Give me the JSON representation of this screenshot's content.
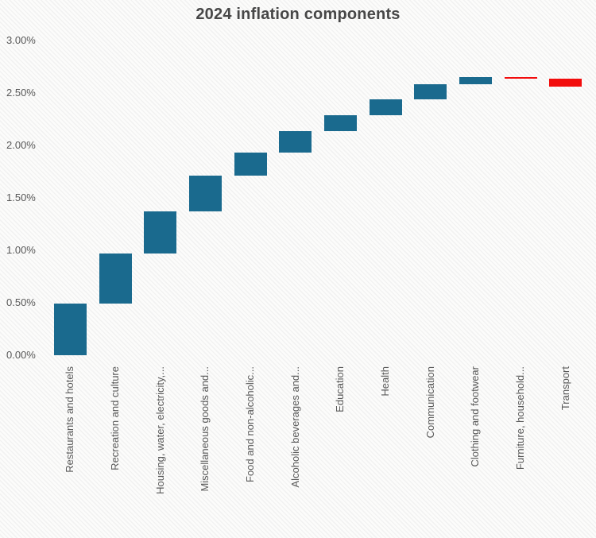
{
  "chart_data": {
    "type": "bar",
    "subtype": "waterfall",
    "title": "2024 inflation components",
    "xlabel": "",
    "ylabel": "",
    "unit": "%",
    "ylim": [
      0,
      3.0
    ],
    "grid": false,
    "legend": false,
    "categories": [
      "Restaurants and hotels",
      "Recreation and culture",
      "Housing, water, electricity,...",
      "Miscellaneous goods and...",
      "Food and non-alcoholic...",
      "Alcoholic beverages and...",
      "Education",
      "Health",
      "Communication",
      "Clothing and footwear",
      "Furniture, household...",
      "Transport"
    ],
    "values": [
      0.49,
      0.48,
      0.4,
      0.34,
      0.22,
      0.21,
      0.15,
      0.15,
      0.14,
      0.07,
      -0.01,
      -0.08
    ],
    "cumulative": [
      0.49,
      0.97,
      1.37,
      1.71,
      1.93,
      2.14,
      2.29,
      2.44,
      2.58,
      2.65,
      2.64,
      2.56
    ],
    "yticks": [
      {
        "label": "3.00%",
        "value": 3.0
      },
      {
        "label": "2.50%",
        "value": 2.5
      },
      {
        "label": "2.00%",
        "value": 2.0
      },
      {
        "label": "1.50%",
        "value": 1.5
      },
      {
        "label": "1.00%",
        "value": 1.0
      },
      {
        "label": "0.50%",
        "value": 0.5
      },
      {
        "label": "0.00%",
        "value": 0.0
      }
    ],
    "colors": {
      "increase": "#1A6A8E",
      "decrease": "#F20D0D",
      "title_text": "#474747",
      "axis_text": "#595959"
    }
  }
}
